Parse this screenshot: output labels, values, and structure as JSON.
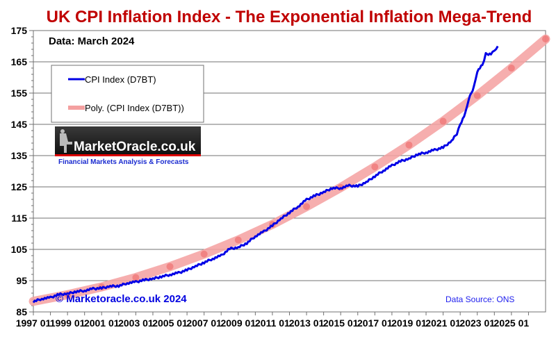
{
  "chart_data": {
    "type": "line",
    "title": "UK CPI Inflation Index - The Exponential Inflation Mega-Trend",
    "subtitle": "Data: March 2024",
    "xlabel": "",
    "ylabel": "",
    "xlim": [
      1997.0,
      2027.0
    ],
    "ylim": [
      85,
      175
    ],
    "yticks": [
      85,
      95,
      105,
      115,
      125,
      135,
      145,
      155,
      165,
      175
    ],
    "xtick_labels": [
      "1997 01",
      "1999 01",
      "2001 01",
      "2003 01",
      "2005 01",
      "2007 01",
      "2009 01",
      "2011 01",
      "2013 01",
      "2015 01",
      "2017 01",
      "2019 01",
      "2021 01",
      "2023 01",
      "2025 01"
    ],
    "xtick_years": [
      1997,
      1999,
      2001,
      2003,
      2005,
      2007,
      2009,
      2011,
      2013,
      2015,
      2017,
      2019,
      2021,
      2023,
      2025
    ],
    "grid": true,
    "legend_position": "top-left",
    "series": [
      {
        "name": "CPI Index (D7BT)",
        "color": "#0000e6",
        "style": "line",
        "x": [
          1997.0,
          1997.5,
          1998.0,
          1998.5,
          1999.0,
          1999.5,
          2000.0,
          2000.5,
          2001.0,
          2001.5,
          2002.0,
          2002.5,
          2003.0,
          2003.5,
          2004.0,
          2004.5,
          2005.0,
          2005.5,
          2006.0,
          2006.5,
          2007.0,
          2007.5,
          2008.0,
          2008.5,
          2009.0,
          2009.5,
          2010.0,
          2010.5,
          2011.0,
          2011.5,
          2012.0,
          2012.5,
          2013.0,
          2013.5,
          2014.0,
          2014.5,
          2015.0,
          2015.5,
          2016.0,
          2016.5,
          2017.0,
          2017.5,
          2018.0,
          2018.5,
          2019.0,
          2019.5,
          2020.0,
          2020.5,
          2021.0,
          2021.5,
          2021.8,
          2022.0,
          2022.3,
          2022.5,
          2022.8,
          2023.0,
          2023.3,
          2023.5,
          2023.8,
          2024.0,
          2024.2
        ],
        "values": [
          88.3,
          89.2,
          89.6,
          90.6,
          90.8,
          91.5,
          91.8,
          92.4,
          92.6,
          93.2,
          93.3,
          94.2,
          94.6,
          95.2,
          95.6,
          96.3,
          96.9,
          97.5,
          98.4,
          99.6,
          100.8,
          102.0,
          103.0,
          105.2,
          105.6,
          107.0,
          109.2,
          110.7,
          112.6,
          114.8,
          116.8,
          118.7,
          120.9,
          122.2,
          123.3,
          124.6,
          124.6,
          125.4,
          125.2,
          126.5,
          128.4,
          130.2,
          131.8,
          133.2,
          134.0,
          135.4,
          136.0,
          136.8,
          137.6,
          139.7,
          142.0,
          145.0,
          148.5,
          153.0,
          157.0,
          162.0,
          164.0,
          167.5,
          167.5,
          168.4,
          170.0
        ]
      },
      {
        "name": "Poly. (CPI Index (D7BT))",
        "color": "#f4a0a0",
        "style": "trendline",
        "coefficients_note": "quadratic trend",
        "x": [
          1997.0,
          1999.0,
          2001.0,
          2003.0,
          2005.0,
          2007.0,
          2009.0,
          2011.0,
          2013.0,
          2015.0,
          2017.0,
          2019.0,
          2021.0,
          2023.0,
          2025.0,
          2027.0
        ],
        "values": [
          88.4,
          90.5,
          93.0,
          96.0,
          99.5,
          103.5,
          108.0,
          113.0,
          118.7,
          124.8,
          131.4,
          138.4,
          146.0,
          154.2,
          163.0,
          172.3
        ]
      }
    ],
    "annotations": {
      "copyright": "© Marketoracle.co.uk 2024",
      "source": "Data Source: ONS"
    }
  },
  "logo": {
    "name": "MarketOracle.co.uk",
    "tagline": "Financial Markets Analysis & Forecasts"
  }
}
